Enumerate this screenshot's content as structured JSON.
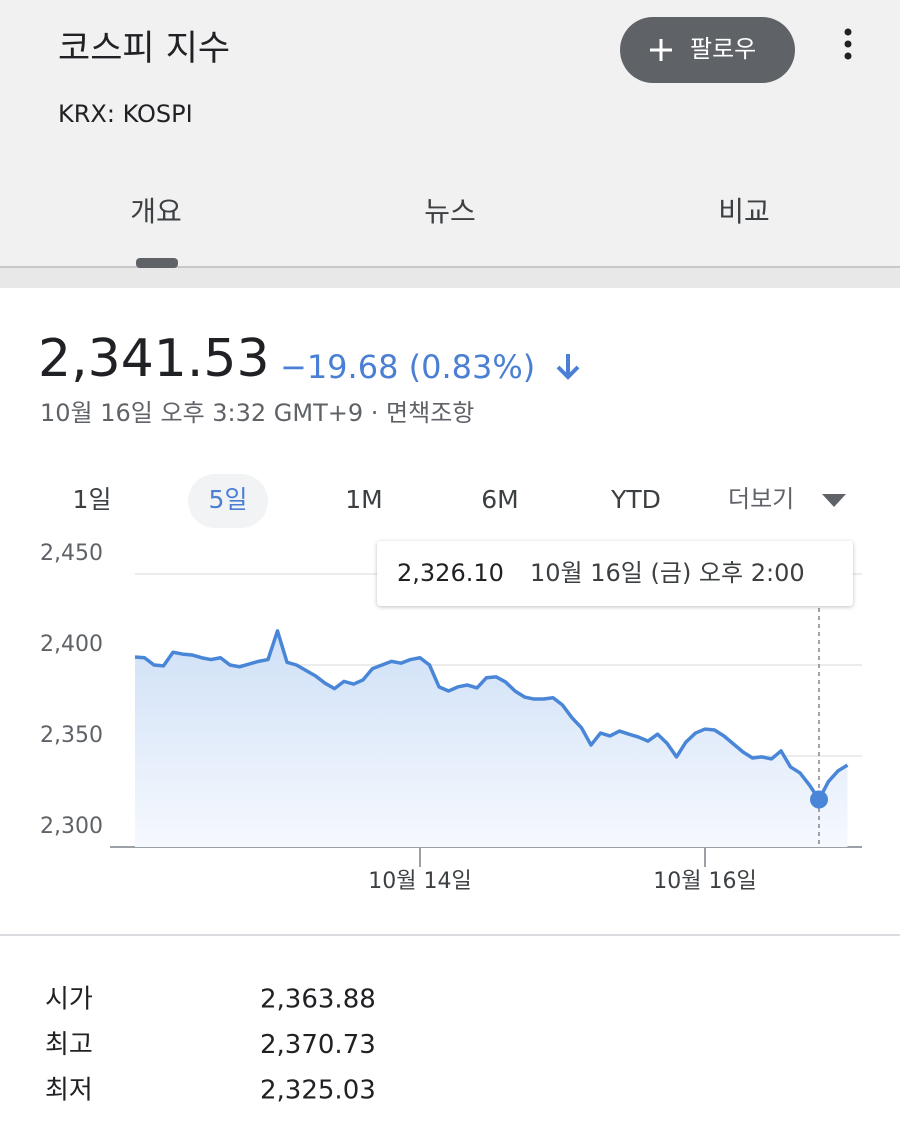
{
  "header": {
    "title": "코스피 지수",
    "ticker": "KRX: KOSPI",
    "follow_button": "팔로우"
  },
  "tabs": [
    "개요",
    "뉴스",
    "비교"
  ],
  "quote": {
    "price": "2,341.53",
    "change": "−19.68 (0.83%)",
    "timestamp": "10월 16일 오후 3:32 GMT+9 · 면책조항"
  },
  "ranges": {
    "items": [
      "1일",
      "5일",
      "1M",
      "6M",
      "YTD"
    ],
    "more": "더보기",
    "selected": 1
  },
  "chart_data": {
    "type": "line",
    "categories": [
      null,
      null,
      null,
      null,
      null,
      null,
      null,
      null,
      null,
      null,
      null,
      null,
      null,
      null,
      null,
      null,
      null,
      null,
      null,
      null,
      null,
      null,
      null,
      null,
      null,
      null,
      null,
      null,
      null,
      null,
      "10월 14일",
      null,
      null,
      null,
      null,
      null,
      null,
      null,
      null,
      null,
      null,
      null,
      null,
      null,
      null,
      null,
      null,
      null,
      null,
      null,
      null,
      null,
      null,
      null,
      null,
      null,
      null,
      null,
      null,
      null,
      "10월 16일",
      null,
      null,
      null,
      null,
      null,
      null,
      null,
      null,
      null,
      null,
      null,
      null,
      null,
      null,
      null
    ],
    "series": [
      {
        "name": "KOSPI",
        "color": "#4a86d8",
        "values": [
          2404.4,
          2404,
          2400,
          2399.5,
          2407,
          2406,
          2405.5,
          2404,
          2403,
          2404,
          2400,
          2399,
          2400.5,
          2402,
          2403,
          2418.7,
          2401.5,
          2400,
          2397,
          2394,
          2390,
          2387,
          2391,
          2389.5,
          2391.8,
          2398,
          2400,
          2402,
          2401,
          2403,
          2404,
          2400,
          2388,
          2385.7,
          2388,
          2389,
          2387.4,
          2393,
          2393.5,
          2390.7,
          2385.7,
          2382.4,
          2381.3,
          2381.3,
          2382,
          2378,
          2371,
          2365.5,
          2356,
          2362.6,
          2361,
          2363.7,
          2362,
          2360.4,
          2358.2,
          2362,
          2357,
          2349.5,
          2357.7,
          2362.6,
          2364.8,
          2364.3,
          2361,
          2356.6,
          2352.2,
          2348.9,
          2349.5,
          2348.4,
          2352.8,
          2344,
          2340.7,
          2334,
          2326.1,
          2336,
          2341.8,
          2345
        ]
      }
    ],
    "ylim": [
      2300,
      2450
    ],
    "yticks": [
      {
        "value": 2300,
        "label": "2,300"
      },
      {
        "value": 2350,
        "label": "2,350"
      },
      {
        "value": 2400,
        "label": "2,400"
      },
      {
        "value": 2450,
        "label": "2,450"
      }
    ],
    "grid": true,
    "tooltip": {
      "index": 72,
      "label": "2,326.10",
      "time": "10월 16일 (금) 오후 2:00"
    }
  },
  "stats": {
    "rows": [
      [
        "시가",
        "2,363.88"
      ],
      [
        "최고",
        "2,370.73"
      ],
      [
        "최저",
        "2,325.03"
      ]
    ]
  }
}
